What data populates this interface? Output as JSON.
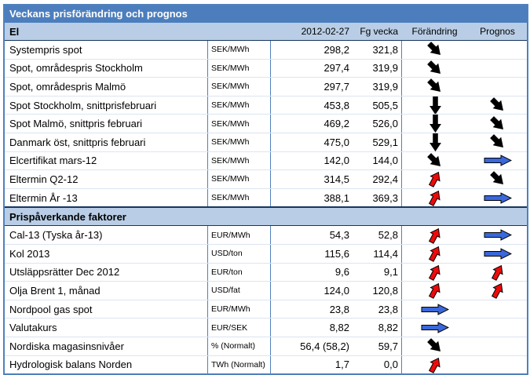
{
  "title": "Veckans prisförändring och prognos",
  "columns": {
    "date": "2012-02-27",
    "prev_week": "Fg vecka",
    "change": "Förändring",
    "forecast": "Prognos"
  },
  "colors": {
    "title_bg": "#4c7ebd",
    "section_bg": "#b9cee6",
    "border_blue": "#4f81bd",
    "divider_dark": "#17365d",
    "arrow_black": "#000000",
    "arrow_red": "#ee0a0a",
    "arrow_blue": "#3a67da"
  },
  "arrow_legend": {
    "down": "down-arrow",
    "down-right": "down-right-arrow",
    "up-right": "up-right-arrow",
    "right": "right-arrow"
  },
  "sections": [
    {
      "name": "El",
      "rows": [
        {
          "label": "Systempris spot",
          "unit": "SEK/MWh",
          "current": "298,2",
          "prev": "321,8",
          "change": "down-right",
          "forecast": null
        },
        {
          "label": "Spot, områdespris Stockholm",
          "unit": "SEK/MWh",
          "current": "297,4",
          "prev": "319,9",
          "change": "down-right",
          "forecast": null
        },
        {
          "label": "Spot, områdespris Malmö",
          "unit": "SEK/MWh",
          "current": "297,7",
          "prev": "319,9",
          "change": "down-right",
          "forecast": null
        },
        {
          "label": "Spot Stockholm, snittprisfebruari",
          "unit": "SEK/MWh",
          "current": "453,8",
          "prev": "505,5",
          "change": "down",
          "forecast": "down-right"
        },
        {
          "label": "Spot Malmö, snittpris februari",
          "unit": "SEK/MWh",
          "current": "469,2",
          "prev": "526,0",
          "change": "down",
          "forecast": "down-right"
        },
        {
          "label": "Danmark öst, snittpris februari",
          "unit": "SEK/MWh",
          "current": "475,0",
          "prev": "529,1",
          "change": "down",
          "forecast": "down-right"
        },
        {
          "label": "Elcertifikat mars-12",
          "unit": "SEK/MWh",
          "current": "142,0",
          "prev": "144,0",
          "change": "down-right",
          "forecast": "right"
        },
        {
          "label": "Eltermin Q2-12",
          "unit": "SEK/MWh",
          "current": "314,5",
          "prev": "292,4",
          "change": "up-right",
          "forecast": "down-right"
        },
        {
          "label": "Eltermin År -13",
          "unit": "SEK/MWh",
          "current": "388,1",
          "prev": "369,3",
          "change": "up-right",
          "forecast": "right"
        }
      ]
    },
    {
      "name": "Prispåverkande faktorer",
      "rows": [
        {
          "label": "Cal-13 (Tyska år-13)",
          "unit": "EUR/MWh",
          "current": "54,3",
          "prev": "52,8",
          "change": "up-right",
          "forecast": "right"
        },
        {
          "label": "Kol 2013",
          "unit": "USD/ton",
          "current": "115,6",
          "prev": "114,4",
          "change": "up-right",
          "forecast": "right"
        },
        {
          "label": "Utsläppsrätter Dec 2012",
          "unit": "EUR/ton",
          "current": "9,6",
          "prev": "9,1",
          "change": "up-right",
          "forecast": "up-right"
        },
        {
          "label": "Olja Brent 1, månad",
          "unit": "USD/fat",
          "current": "124,0",
          "prev": "120,8",
          "change": "up-right",
          "forecast": "up-right"
        },
        {
          "label": "Nordpool gas spot",
          "unit": "EUR/MWh",
          "current": "23,8",
          "prev": "23,8",
          "change": "right",
          "forecast": null
        },
        {
          "label": "Valutakurs",
          "unit": "EUR/SEK",
          "current": "8,82",
          "prev": "8,82",
          "change": "right",
          "forecast": null
        },
        {
          "label": "Nordiska magasinsnivåer",
          "unit": "% (Normalt)",
          "current": "56,4 (58,2)",
          "prev": "59,7",
          "change": "down-right",
          "forecast": null
        },
        {
          "label": "Hydrologisk balans Norden",
          "unit": "TWh (Normalt)",
          "current": "1,7",
          "prev": "0,0",
          "change": "up-right",
          "forecast": null
        }
      ]
    }
  ]
}
